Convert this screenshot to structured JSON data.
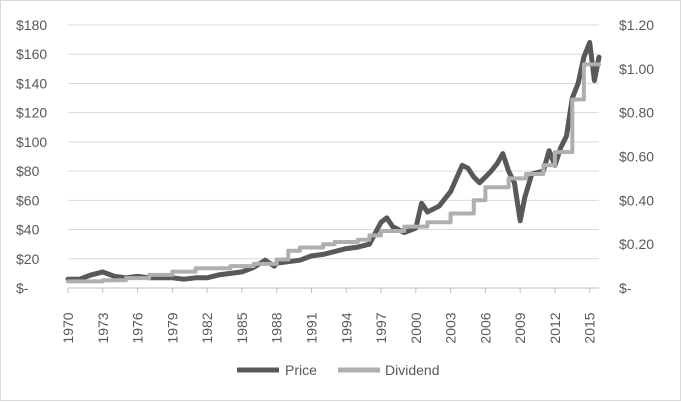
{
  "chart_data": {
    "type": "line",
    "title": "",
    "xlabel": "",
    "ylabel": "",
    "x_ticks": [
      "1970",
      "1973",
      "1976",
      "1979",
      "1982",
      "1985",
      "1988",
      "1991",
      "1994",
      "1997",
      "2000",
      "2003",
      "2006",
      "2009",
      "2012",
      "2015"
    ],
    "y_left": {
      "ticks": [
        "$-",
        "$20",
        "$40",
        "$60",
        "$80",
        "$100",
        "$120",
        "$140",
        "$160",
        "$180"
      ],
      "min": 0,
      "max": 180
    },
    "y_right": {
      "ticks": [
        "$-",
        "$0.20",
        "$0.40",
        "$0.60",
        "$0.80",
        "$1.00",
        "$1.20"
      ],
      "min": 0,
      "max": 1.2
    },
    "xlim": [
      1970,
      2015.8
    ],
    "grid": "horizontal",
    "legend": "bottom",
    "series": [
      {
        "name": "Price",
        "axis": "left",
        "color": "#595959",
        "points": [
          [
            1970,
            6
          ],
          [
            1971,
            6
          ],
          [
            1972,
            9
          ],
          [
            1973,
            11
          ],
          [
            1974,
            8
          ],
          [
            1975,
            7
          ],
          [
            1976,
            8
          ],
          [
            1977,
            7
          ],
          [
            1978,
            7
          ],
          [
            1979,
            7
          ],
          [
            1980,
            6
          ],
          [
            1981,
            7
          ],
          [
            1982,
            7
          ],
          [
            1983,
            9
          ],
          [
            1984,
            10
          ],
          [
            1985,
            11
          ],
          [
            1986,
            14
          ],
          [
            1987,
            19
          ],
          [
            1987.8,
            15
          ],
          [
            1988,
            17
          ],
          [
            1989,
            18
          ],
          [
            1990,
            19
          ],
          [
            1991,
            22
          ],
          [
            1992,
            23
          ],
          [
            1993,
            25
          ],
          [
            1994,
            27
          ],
          [
            1995,
            28
          ],
          [
            1996,
            30
          ],
          [
            1997,
            45
          ],
          [
            1997.5,
            48
          ],
          [
            1998,
            42
          ],
          [
            1999,
            38
          ],
          [
            2000,
            41
          ],
          [
            2000.5,
            58
          ],
          [
            2001,
            52
          ],
          [
            2002,
            56
          ],
          [
            2003,
            66
          ],
          [
            2004,
            84
          ],
          [
            2004.5,
            82
          ],
          [
            2005,
            76
          ],
          [
            2005.5,
            72
          ],
          [
            2006,
            76
          ],
          [
            2006.5,
            80
          ],
          [
            2007,
            85
          ],
          [
            2007.5,
            92
          ],
          [
            2008,
            80
          ],
          [
            2008.5,
            72
          ],
          [
            2009,
            46
          ],
          [
            2009.4,
            62
          ],
          [
            2010,
            78
          ],
          [
            2011,
            80
          ],
          [
            2011.5,
            94
          ],
          [
            2012,
            84
          ],
          [
            2012.5,
            96
          ],
          [
            2013,
            104
          ],
          [
            2013.5,
            130
          ],
          [
            2014,
            140
          ],
          [
            2014.5,
            158
          ],
          [
            2015,
            168
          ],
          [
            2015.4,
            142
          ],
          [
            2015.8,
            158
          ]
        ]
      },
      {
        "name": "Dividend",
        "axis": "right",
        "color": "#afafaf",
        "points": [
          [
            1970,
            0.03
          ],
          [
            1973,
            0.03
          ],
          [
            1973,
            0.035
          ],
          [
            1975,
            0.035
          ],
          [
            1975,
            0.045
          ],
          [
            1977,
            0.045
          ],
          [
            1977,
            0.06
          ],
          [
            1979,
            0.06
          ],
          [
            1979,
            0.075
          ],
          [
            1981,
            0.075
          ],
          [
            1981,
            0.09
          ],
          [
            1984,
            0.09
          ],
          [
            1984,
            0.1
          ],
          [
            1986,
            0.1
          ],
          [
            1986,
            0.11
          ],
          [
            1988,
            0.11
          ],
          [
            1988,
            0.13
          ],
          [
            1989,
            0.13
          ],
          [
            1989,
            0.17
          ],
          [
            1990,
            0.17
          ],
          [
            1990,
            0.185
          ],
          [
            1992,
            0.185
          ],
          [
            1992,
            0.2
          ],
          [
            1993,
            0.2
          ],
          [
            1993,
            0.21
          ],
          [
            1995,
            0.21
          ],
          [
            1995,
            0.22
          ],
          [
            1996,
            0.22
          ],
          [
            1996,
            0.24
          ],
          [
            1997,
            0.24
          ],
          [
            1997,
            0.26
          ],
          [
            1999,
            0.26
          ],
          [
            1999,
            0.28
          ],
          [
            2001,
            0.28
          ],
          [
            2001,
            0.3
          ],
          [
            2003,
            0.3
          ],
          [
            2003,
            0.34
          ],
          [
            2005,
            0.34
          ],
          [
            2005,
            0.4
          ],
          [
            2006,
            0.4
          ],
          [
            2006,
            0.46
          ],
          [
            2008,
            0.46
          ],
          [
            2008,
            0.5
          ],
          [
            2009.5,
            0.5
          ],
          [
            2009.5,
            0.52
          ],
          [
            2011,
            0.52
          ],
          [
            2011,
            0.56
          ],
          [
            2012,
            0.56
          ],
          [
            2012,
            0.62
          ],
          [
            2013.5,
            0.62
          ],
          [
            2013.5,
            0.86
          ],
          [
            2014.5,
            0.86
          ],
          [
            2014.5,
            1.02
          ],
          [
            2015.8,
            1.02
          ]
        ]
      }
    ]
  }
}
